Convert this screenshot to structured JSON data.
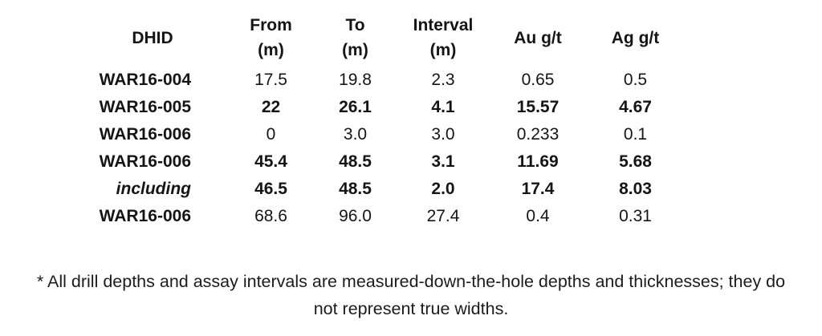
{
  "chart_data": {
    "type": "table",
    "columns": [
      {
        "label": "DHID",
        "unit": ""
      },
      {
        "label": "From",
        "unit": "(m)"
      },
      {
        "label": "To",
        "unit": "(m)"
      },
      {
        "label": "Interval",
        "unit": "(m)"
      },
      {
        "label": "Au g/t",
        "unit": ""
      },
      {
        "label": "Ag g/t",
        "unit": ""
      }
    ],
    "rows": [
      {
        "dhid": "WAR16-004",
        "from": "17.5",
        "to": "19.8",
        "interval": "2.3",
        "au_gt": "0.65",
        "ag_gt": "0.5",
        "bold": false,
        "italic_dhid": false
      },
      {
        "dhid": "WAR16-005",
        "from": "22",
        "to": "26.1",
        "interval": "4.1",
        "au_gt": "15.57",
        "ag_gt": "4.67",
        "bold": true,
        "italic_dhid": false
      },
      {
        "dhid": "WAR16-006",
        "from": "0",
        "to": "3.0",
        "interval": "3.0",
        "au_gt": "0.233",
        "ag_gt": "0.1",
        "bold": false,
        "italic_dhid": false
      },
      {
        "dhid": "WAR16-006",
        "from": "45.4",
        "to": "48.5",
        "interval": "3.1",
        "au_gt": "11.69",
        "ag_gt": "5.68",
        "bold": true,
        "italic_dhid": false
      },
      {
        "dhid": "including",
        "from": "46.5",
        "to": "48.5",
        "interval": "2.0",
        "au_gt": "17.4",
        "ag_gt": "8.03",
        "bold": true,
        "italic_dhid": true
      },
      {
        "dhid": "WAR16-006",
        "from": "68.6",
        "to": "96.0",
        "interval": "27.4",
        "au_gt": "0.4",
        "ag_gt": "0.31",
        "bold": false,
        "italic_dhid": false
      }
    ]
  },
  "footnote": {
    "line1": "* All drill depths and assay intervals are measured-down-the-hole depths and thicknesses; they do",
    "line2": "not represent true widths."
  },
  "colors": {
    "background": "#ffffff",
    "text": "#151515"
  }
}
